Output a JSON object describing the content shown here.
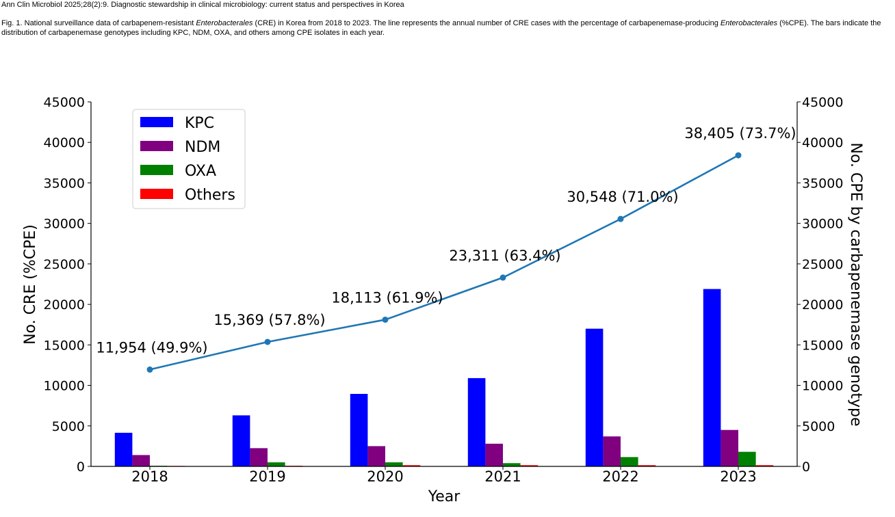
{
  "citation": "Ann Clin Microbiol 2025;28(2):9. Diagnostic stewardship in clinical microbiology: current status and perspectives in Korea",
  "caption": {
    "p1": "Fig. 1. National surveillance data of carbapenem-resistant ",
    "em1": "Enterobacterales",
    "p2": " (CRE) in Korea from 2018 to 2023. The line represents the annual number of CRE cases with the percentage of carbapenemase-producing ",
    "em2": "Enterobacterales",
    "p3": " (%CPE). The bars indicate the distribution of carbapenemase genotypes including KPC, NDM, OXA, and others among CPE isolates in each year."
  },
  "chart_data": {
    "type": "bar",
    "categories": [
      "2018",
      "2019",
      "2020",
      "2021",
      "2022",
      "2023"
    ],
    "series": [
      {
        "name": "KPC",
        "color": "#0000ff",
        "values": [
          4150,
          6300,
          8950,
          10900,
          17000,
          21900
        ]
      },
      {
        "name": "NDM",
        "color": "#800080",
        "values": [
          1400,
          2250,
          2500,
          2800,
          3700,
          4500
        ]
      },
      {
        "name": "OXA",
        "color": "#008000",
        "values": [
          80,
          500,
          500,
          400,
          1150,
          1800
        ]
      },
      {
        "name": "Others",
        "color": "#ff0000",
        "values": [
          60,
          80,
          150,
          150,
          150,
          150
        ]
      }
    ],
    "line": {
      "color": "#1f77b4",
      "values": [
        11954,
        15369,
        18113,
        23311,
        30548,
        38405
      ],
      "labels": [
        "11,954 (49.9%)",
        "15,369 (57.8%)",
        "18,113 (61.9%)",
        "23,311 (63.4%)",
        "30,548 (71.0%)",
        "38,405 (73.7%)"
      ]
    },
    "xlabel": "Year",
    "ylabel": "No. CRE (%CPE)",
    "ylabel_right": "No. CPE by carbapenemase genotype",
    "ylim": [
      0,
      45000
    ],
    "yticks": [
      0,
      5000,
      10000,
      15000,
      20000,
      25000,
      30000,
      35000,
      40000,
      45000
    ],
    "grid": false,
    "legend_position": "top-left"
  }
}
